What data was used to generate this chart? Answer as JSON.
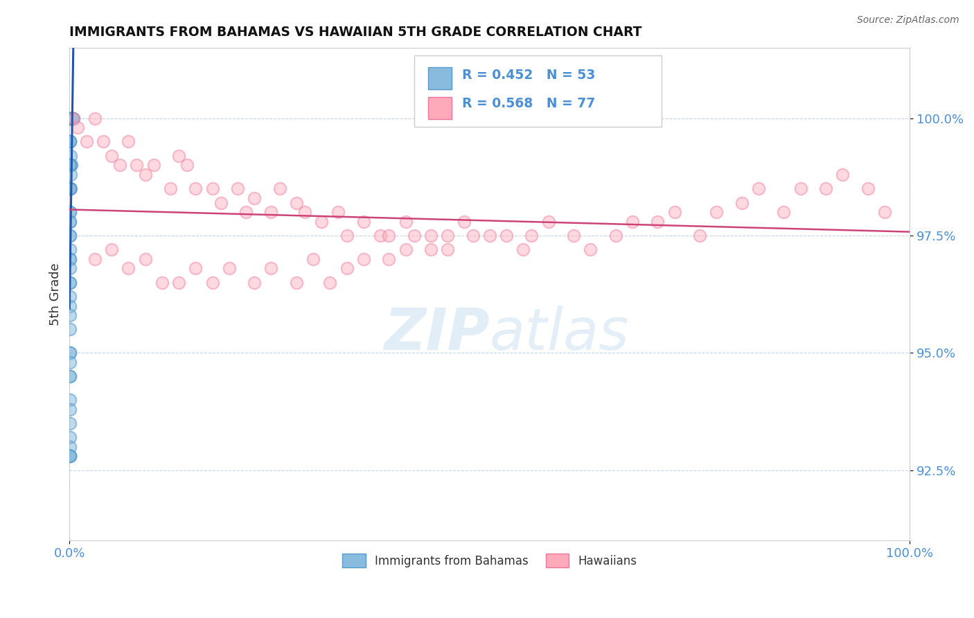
{
  "title": "IMMIGRANTS FROM BAHAMAS VS HAWAIIAN 5TH GRADE CORRELATION CHART",
  "source_text": "Source: ZipAtlas.com",
  "ylabel": "5th Grade",
  "xlim": [
    0.0,
    100.0
  ],
  "ylim": [
    91.0,
    101.5
  ],
  "yticks": [
    92.5,
    95.0,
    97.5,
    100.0
  ],
  "yticklabels": [
    "92.5%",
    "95.0%",
    "97.5%",
    "100.0%"
  ],
  "xticks": [
    0.0,
    100.0
  ],
  "xticklabels": [
    "0.0%",
    "100.0%"
  ],
  "legend_labels": [
    "Immigrants from Bahamas",
    "Hawaiians"
  ],
  "blue_color": "#88bbdd",
  "blue_color_edge": "#5599cc",
  "pink_color": "#ffaabb",
  "pink_color_edge": "#ee7799",
  "R_blue": 0.452,
  "N_blue": 53,
  "R_pink": 0.568,
  "N_pink": 77,
  "blue_x": [
    0.05,
    0.08,
    0.1,
    0.15,
    0.2,
    0.25,
    0.3,
    0.35,
    0.4,
    0.5,
    0.05,
    0.07,
    0.09,
    0.12,
    0.15,
    0.18,
    0.05,
    0.08,
    0.1,
    0.13,
    0.05,
    0.06,
    0.08,
    0.05,
    0.06,
    0.05,
    0.06,
    0.05,
    0.06,
    0.05,
    0.05,
    0.06,
    0.05,
    0.05,
    0.05,
    0.05,
    0.05,
    0.05,
    0.05,
    0.05,
    0.05,
    0.05,
    0.05,
    0.05,
    0.05,
    0.05,
    0.05,
    0.05,
    0.05,
    0.06,
    0.07,
    0.08,
    0.09
  ],
  "blue_y": [
    100.0,
    100.0,
    100.0,
    100.0,
    100.0,
    100.0,
    100.0,
    100.0,
    100.0,
    100.0,
    99.5,
    99.5,
    99.5,
    99.2,
    99.0,
    99.0,
    99.0,
    99.0,
    98.8,
    98.5,
    98.5,
    98.5,
    98.5,
    98.0,
    98.0,
    97.8,
    97.8,
    97.5,
    97.5,
    97.2,
    97.0,
    97.0,
    96.8,
    96.5,
    96.5,
    96.2,
    96.0,
    95.8,
    95.5,
    95.0,
    95.0,
    94.8,
    94.5,
    94.5,
    94.0,
    93.8,
    93.5,
    93.2,
    93.0,
    92.8,
    92.8,
    92.8,
    92.8
  ],
  "pink_x": [
    0.5,
    1.0,
    2.0,
    3.0,
    4.0,
    5.0,
    6.0,
    7.0,
    8.0,
    9.0,
    10.0,
    12.0,
    13.0,
    14.0,
    15.0,
    17.0,
    18.0,
    20.0,
    21.0,
    22.0,
    24.0,
    25.0,
    27.0,
    28.0,
    30.0,
    32.0,
    33.0,
    35.0,
    37.0,
    38.0,
    40.0,
    41.0,
    43.0,
    45.0,
    47.0,
    50.0,
    52.0,
    54.0,
    55.0,
    57.0,
    60.0,
    62.0,
    65.0,
    67.0,
    70.0,
    72.0,
    75.0,
    77.0,
    80.0,
    82.0,
    85.0,
    87.0,
    90.0,
    92.0,
    95.0,
    97.0,
    3.0,
    5.0,
    7.0,
    9.0,
    11.0,
    13.0,
    15.0,
    17.0,
    19.0,
    22.0,
    24.0,
    27.0,
    29.0,
    31.0,
    33.0,
    35.0,
    38.0,
    40.0,
    43.0,
    45.0,
    48.0
  ],
  "pink_y": [
    100.0,
    99.8,
    99.5,
    100.0,
    99.5,
    99.2,
    99.0,
    99.5,
    99.0,
    98.8,
    99.0,
    98.5,
    99.2,
    99.0,
    98.5,
    98.5,
    98.2,
    98.5,
    98.0,
    98.3,
    98.0,
    98.5,
    98.2,
    98.0,
    97.8,
    98.0,
    97.5,
    97.8,
    97.5,
    97.5,
    97.8,
    97.5,
    97.2,
    97.5,
    97.8,
    97.5,
    97.5,
    97.2,
    97.5,
    97.8,
    97.5,
    97.2,
    97.5,
    97.8,
    97.8,
    98.0,
    97.5,
    98.0,
    98.2,
    98.5,
    98.0,
    98.5,
    98.5,
    98.8,
    98.5,
    98.0,
    97.0,
    97.2,
    96.8,
    97.0,
    96.5,
    96.5,
    96.8,
    96.5,
    96.8,
    96.5,
    96.8,
    96.5,
    97.0,
    96.5,
    96.8,
    97.0,
    97.0,
    97.2,
    97.5,
    97.2,
    97.5
  ]
}
